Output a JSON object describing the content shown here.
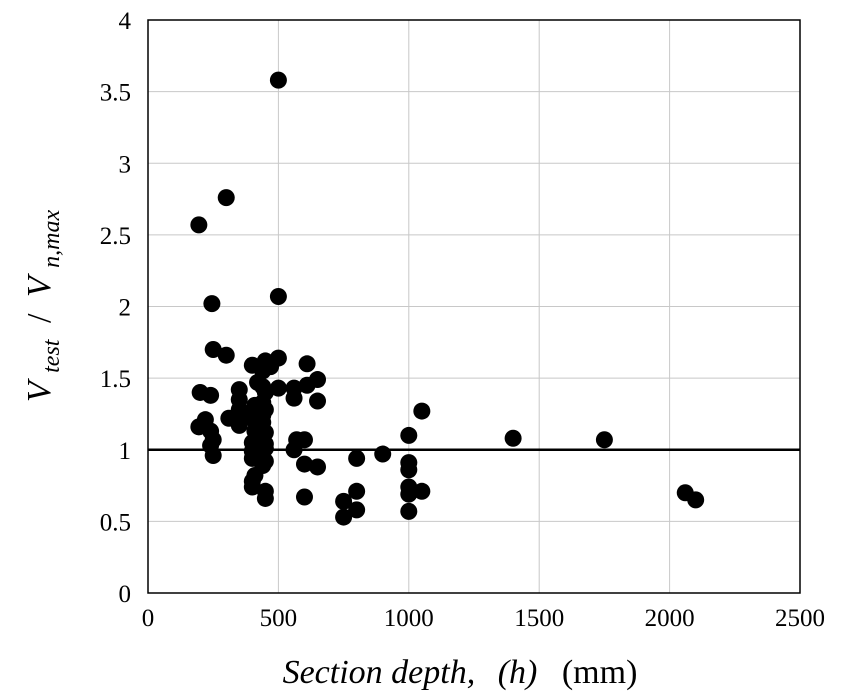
{
  "chart_data": {
    "type": "scatter",
    "xlabel_parts": {
      "main": "Section depth,",
      "var": "(h)",
      "unit": "(mm)"
    },
    "ylabel_parts": {
      "v1": "V",
      "sub1": "test",
      "slash": "/",
      "v2": "V",
      "sub2": "n,max"
    },
    "xlim": [
      0,
      2500
    ],
    "ylim": [
      0,
      4
    ],
    "xticks": [
      0,
      500,
      1000,
      1500,
      2000,
      2500
    ],
    "yticks": [
      0,
      0.5,
      1,
      1.5,
      2,
      2.5,
      3,
      3.5,
      4
    ],
    "ytick_labels": [
      "0",
      "0.5",
      "1",
      "1.5",
      "2",
      "2.5",
      "3",
      "3.5",
      "4"
    ],
    "grid": true,
    "reference_line": {
      "y": 1
    },
    "series": [
      {
        "points": [
          [
            500,
            3.58
          ],
          [
            300,
            2.76
          ],
          [
            195,
            2.57
          ],
          [
            500,
            2.07
          ],
          [
            245,
            2.02
          ],
          [
            250,
            1.7
          ],
          [
            300,
            1.66
          ],
          [
            500,
            1.64
          ],
          [
            450,
            1.62
          ],
          [
            610,
            1.6
          ],
          [
            400,
            1.59
          ],
          [
            470,
            1.58
          ],
          [
            440,
            1.55
          ],
          [
            650,
            1.49
          ],
          [
            420,
            1.47
          ],
          [
            610,
            1.45
          ],
          [
            440,
            1.44
          ],
          [
            500,
            1.43
          ],
          [
            560,
            1.43
          ],
          [
            350,
            1.42
          ],
          [
            200,
            1.4
          ],
          [
            450,
            1.4
          ],
          [
            240,
            1.38
          ],
          [
            560,
            1.36
          ],
          [
            350,
            1.35
          ],
          [
            650,
            1.34
          ],
          [
            440,
            1.33
          ],
          [
            410,
            1.31
          ],
          [
            350,
            1.28
          ],
          [
            450,
            1.28
          ],
          [
            1050,
            1.27
          ],
          [
            400,
            1.26
          ],
          [
            440,
            1.24
          ],
          [
            310,
            1.22
          ],
          [
            350,
            1.21
          ],
          [
            220,
            1.21
          ],
          [
            410,
            1.2
          ],
          [
            440,
            1.19
          ],
          [
            350,
            1.17
          ],
          [
            195,
            1.16
          ],
          [
            240,
            1.13
          ],
          [
            410,
            1.13
          ],
          [
            450,
            1.12
          ],
          [
            1000,
            1.1
          ],
          [
            1400,
            1.08
          ],
          [
            250,
            1.07
          ],
          [
            570,
            1.07
          ],
          [
            1750,
            1.07
          ],
          [
            600,
            1.07
          ],
          [
            440,
            1.06
          ],
          [
            400,
            1.05
          ],
          [
            450,
            1.04
          ],
          [
            240,
            1.03
          ],
          [
            410,
            1.02
          ],
          [
            450,
            1.01
          ],
          [
            560,
            1.0
          ],
          [
            400,
            0.99
          ],
          [
            440,
            0.98
          ],
          [
            900,
            0.97
          ],
          [
            250,
            0.96
          ],
          [
            440,
            0.95
          ],
          [
            400,
            0.94
          ],
          [
            800,
            0.94
          ],
          [
            450,
            0.92
          ],
          [
            1000,
            0.91
          ],
          [
            600,
            0.9
          ],
          [
            440,
            0.89
          ],
          [
            650,
            0.88
          ],
          [
            1000,
            0.86
          ],
          [
            410,
            0.82
          ],
          [
            400,
            0.78
          ],
          [
            400,
            0.74
          ],
          [
            1000,
            0.74
          ],
          [
            800,
            0.71
          ],
          [
            1050,
            0.71
          ],
          [
            450,
            0.71
          ],
          [
            2060,
            0.7
          ],
          [
            1000,
            0.69
          ],
          [
            600,
            0.67
          ],
          [
            450,
            0.66
          ],
          [
            2100,
            0.65
          ],
          [
            750,
            0.64
          ],
          [
            800,
            0.58
          ],
          [
            1000,
            0.57
          ],
          [
            750,
            0.53
          ]
        ]
      }
    ]
  }
}
